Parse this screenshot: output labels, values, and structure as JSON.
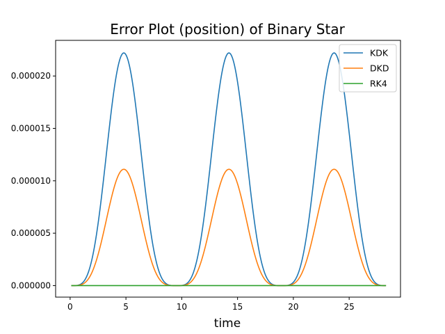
{
  "chart_data": {
    "type": "line",
    "title": "Error Plot (position) of Binary Star",
    "xlabel": "time",
    "ylabel": "",
    "xlim": [
      -1.3,
      29.6
    ],
    "ylim": [
      -1.1e-06,
      2.34e-05
    ],
    "xticks": [
      0,
      5,
      10,
      15,
      20,
      25
    ],
    "xtick_labels": [
      "0",
      "5",
      "10",
      "15",
      "20",
      "25"
    ],
    "yticks": [
      0,
      5e-06,
      1e-05,
      1.5e-05,
      2e-05
    ],
    "ytick_labels": [
      "0.000000",
      "0.000005",
      "0.000010",
      "0.000015",
      "0.000020"
    ],
    "grid": false,
    "legend_position": "top-right",
    "x_range": [
      0.1,
      28.3
    ],
    "series": [
      {
        "name": "KDK",
        "color": "#1f77b4",
        "peak": 2.22e-05,
        "period": 9.42
      },
      {
        "name": "DKD",
        "color": "#ff7f0e",
        "peak": 1.11e-05,
        "period": 9.42
      },
      {
        "name": "RK4",
        "color": "#2ca02c",
        "peak": 0,
        "period": 9.42
      }
    ]
  }
}
